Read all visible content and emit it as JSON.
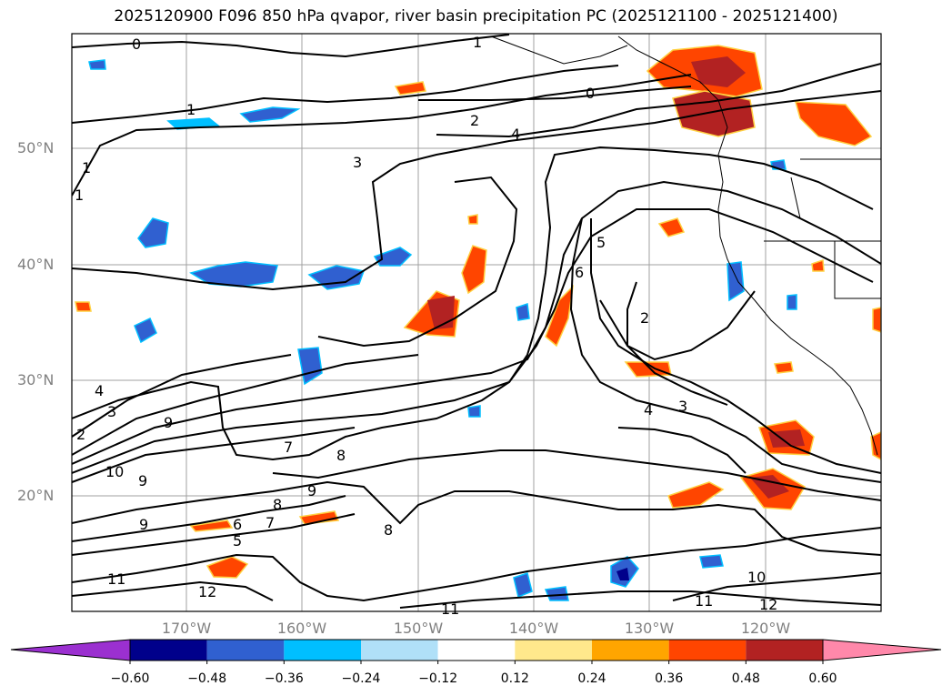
{
  "title": "2025120900 F096 850 hPa qvapor, river basin precipitation PC (2025121100 - 2025121400)",
  "lat_labels": [
    "50°N",
    "40°N",
    "30°N",
    "20°N"
  ],
  "lon_labels": [
    "170°W",
    "160°W",
    "150°W",
    "140°W",
    "130°W",
    "120°W"
  ],
  "colorbar": {
    "ticks": [
      "−0.60",
      "−0.48",
      "−0.36",
      "−0.24",
      "−0.12",
      "0.12",
      "0.24",
      "0.36",
      "0.48",
      "0.60"
    ],
    "colors": {
      "under": "#9b30d0",
      "bins": [
        "#00008b",
        "#3060d0",
        "#00bfff",
        "#b0e0f8",
        "#ffffff",
        "#ffe88c",
        "#ffa500",
        "#ff4500",
        "#b22222"
      ],
      "over": "#ff88aa"
    }
  },
  "contour_labels": [
    "0",
    "1",
    "0",
    "1",
    "2",
    "4",
    "3",
    "1",
    "1",
    "5",
    "6",
    "2",
    "4",
    "3",
    "4",
    "3",
    "2",
    "9",
    "10",
    "9",
    "7",
    "8",
    "9",
    "8",
    "6",
    "7",
    "9",
    "5",
    "8",
    "11",
    "12",
    "10",
    "11",
    "12",
    "11"
  ]
}
